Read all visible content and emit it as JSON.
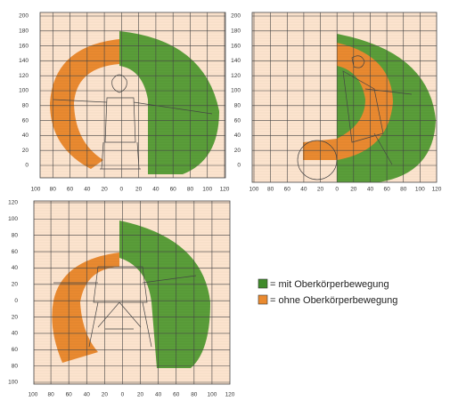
{
  "panels": [
    {
      "y_labels": [
        "200",
        "180",
        "160",
        "140",
        "120",
        "100",
        "80",
        "60",
        "40",
        "20",
        "0"
      ],
      "x_labels": [
        "100",
        "80",
        "60",
        "40",
        "20",
        "0",
        "20",
        "40",
        "60",
        "80",
        "100",
        "120"
      ]
    },
    {
      "y_labels": [
        "200",
        "180",
        "160",
        "140",
        "120",
        "100",
        "80",
        "60",
        "40",
        "20",
        "0"
      ],
      "x_labels": [
        "100",
        "80",
        "60",
        "40",
        "20",
        "0",
        "20",
        "40",
        "60",
        "80",
        "100",
        "120"
      ]
    },
    {
      "y_labels": [
        "120",
        "100",
        "80",
        "60",
        "40",
        "20",
        "0",
        "20",
        "40",
        "60",
        "80",
        "100"
      ],
      "x_labels": [
        "100",
        "80",
        "60",
        "40",
        "20",
        "0",
        "20",
        "40",
        "60",
        "80",
        "100",
        "120"
      ]
    }
  ],
  "legend": [
    {
      "label": "= mit Oberkörperbewegung"
    },
    {
      "label": "= ohne Oberkörperbewegung"
    }
  ]
}
